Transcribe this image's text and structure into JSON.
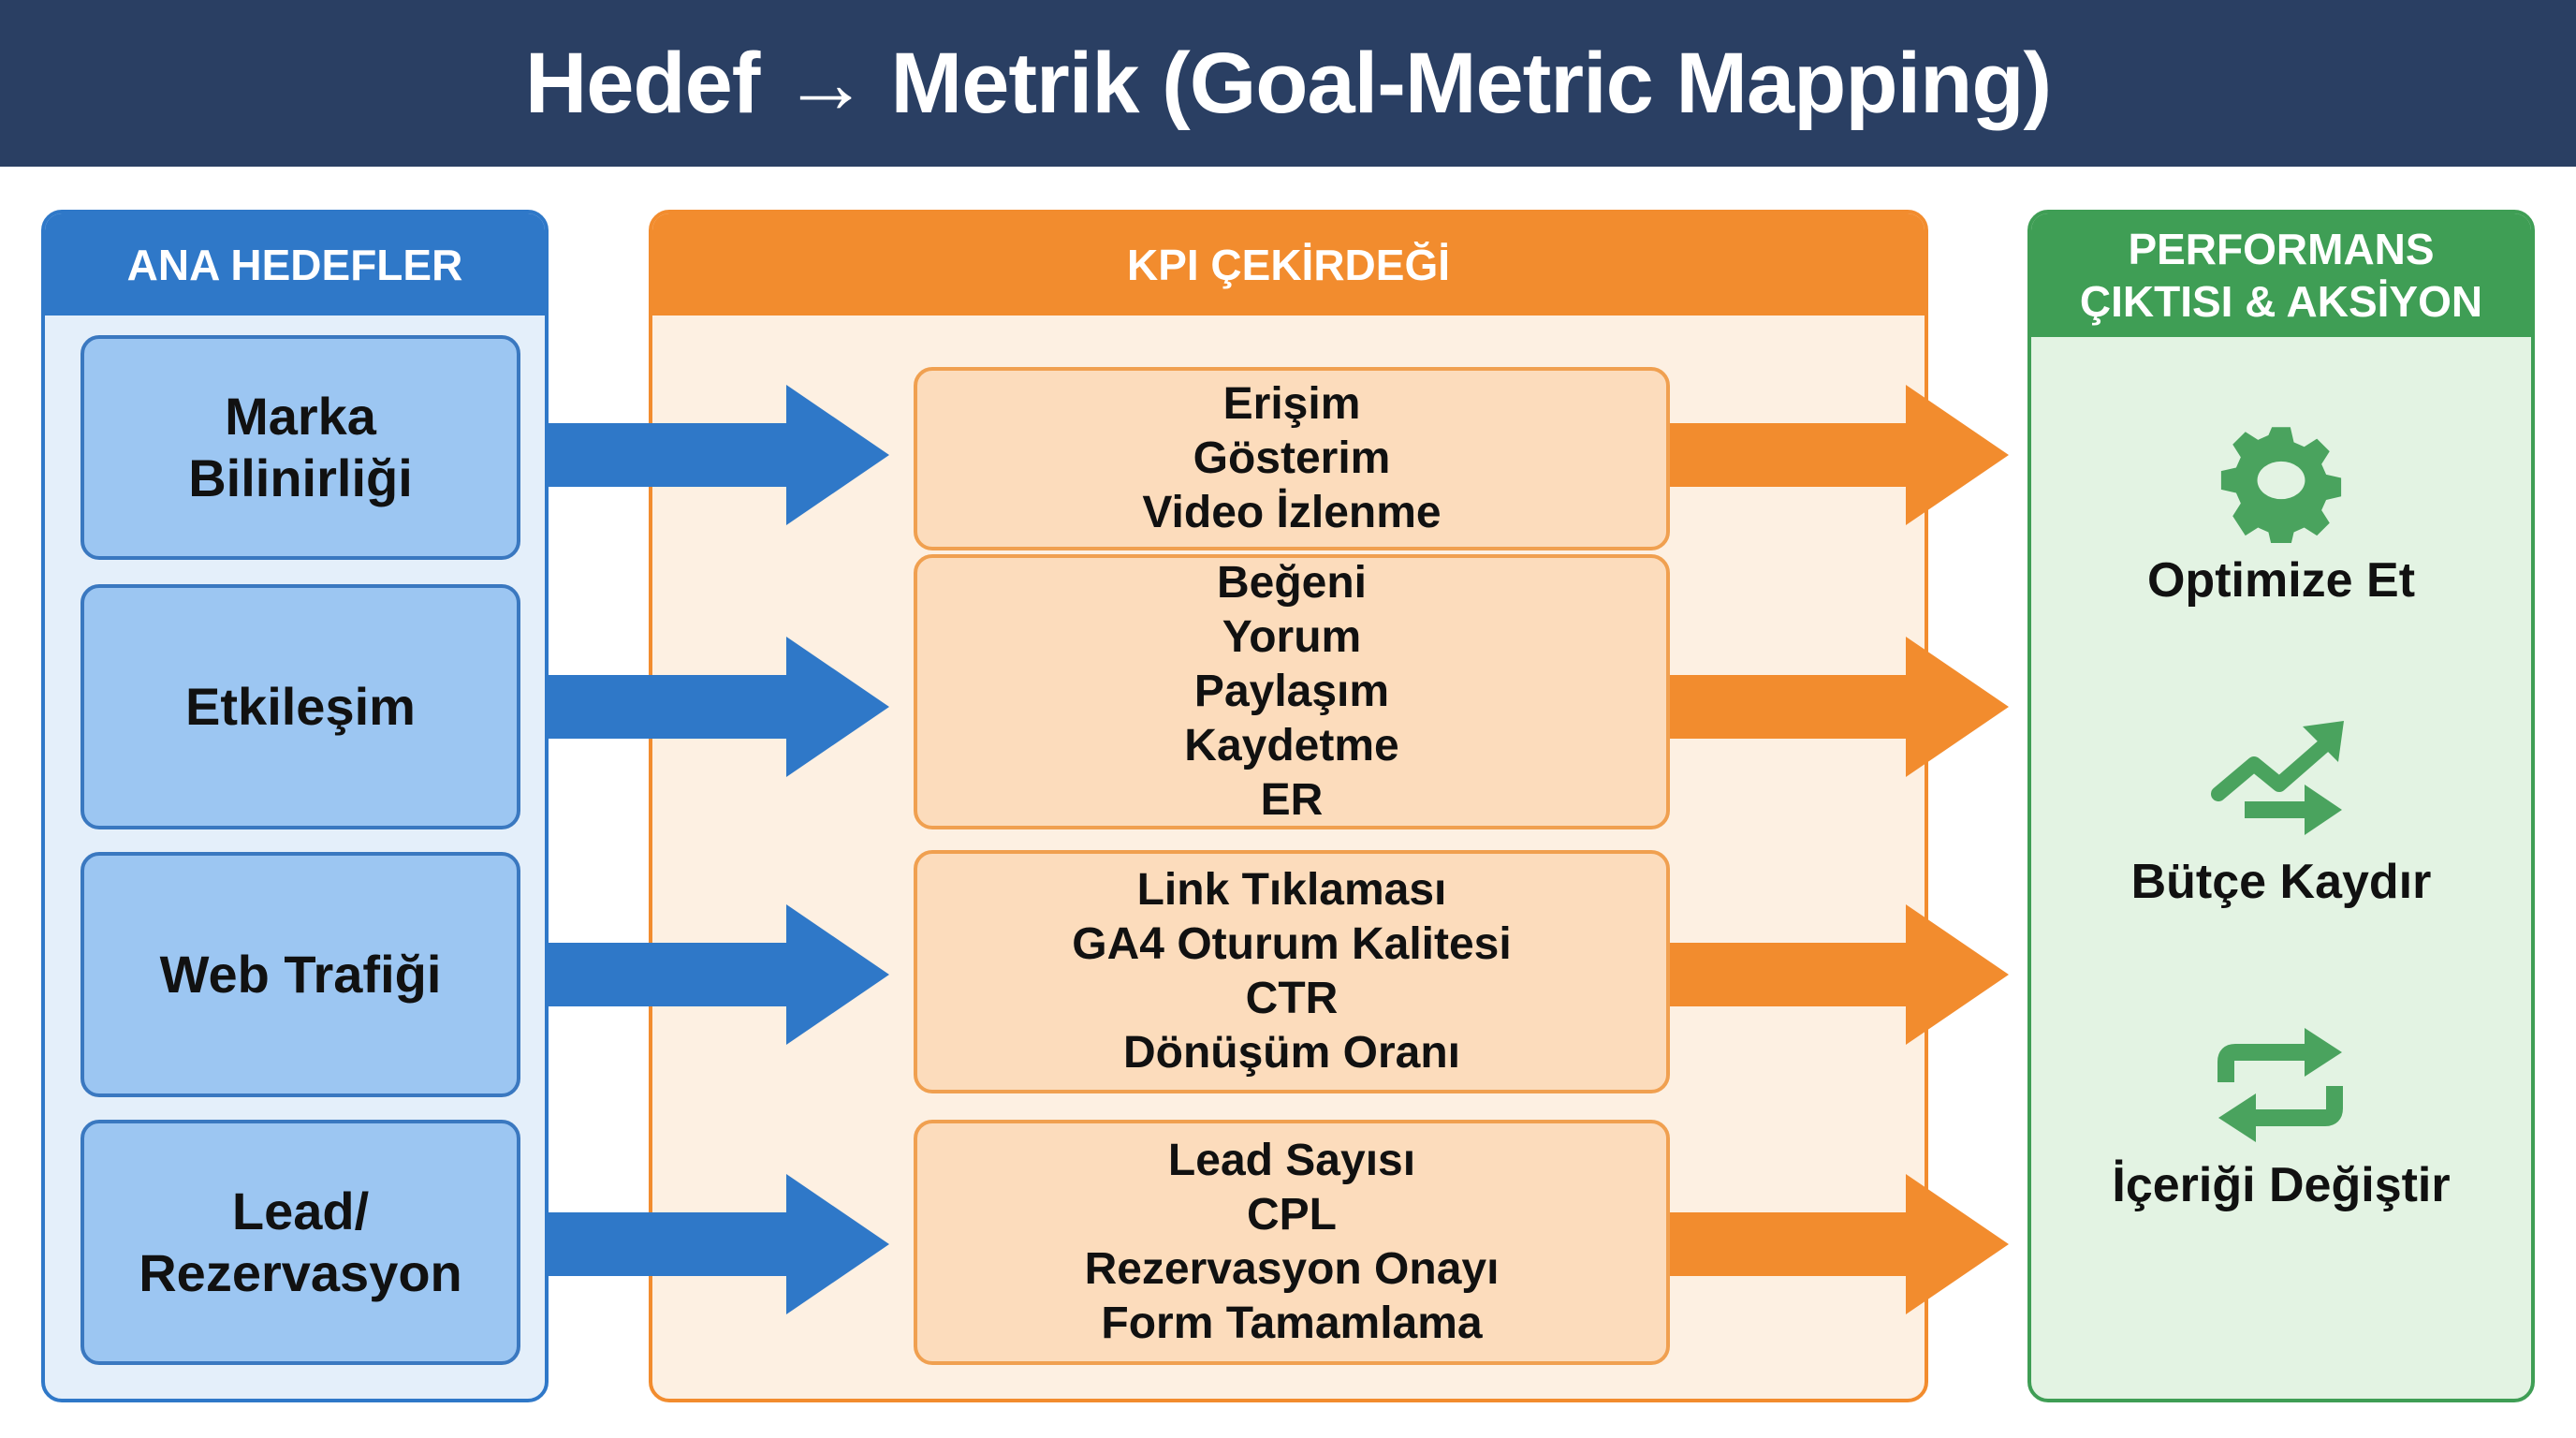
{
  "title": "Hedef → Metrik (Goal-Metric Mapping)",
  "colors": {
    "header": "#2a3f63",
    "goals": "#2f78c8",
    "kpi": "#f28c2e",
    "performance": "#3f9e55"
  },
  "goals_panel": {
    "heading": "ANA HEDEFLER",
    "items": [
      {
        "label": "Marka\nBilinirliği"
      },
      {
        "label": "Etkileşim"
      },
      {
        "label": "Web Trafiği"
      },
      {
        "label": "Lead/\nRezervasyon"
      }
    ]
  },
  "kpi_panel": {
    "heading": "KPI ÇEKİRDEĞİ",
    "groups": [
      {
        "metrics": [
          "Erişim",
          "Gösterim",
          "Video İzlenme"
        ]
      },
      {
        "metrics": [
          "Beğeni",
          "Yorum",
          "Paylaşım",
          "Kaydetme",
          "ER"
        ]
      },
      {
        "metrics": [
          "Link Tıklaması",
          "GA4 Oturum Kalitesi",
          "CTR",
          "Dönüşüm Oranı"
        ]
      },
      {
        "metrics": [
          "Lead Sayısı",
          "CPL",
          "Rezervasyon Onayı",
          "Form Tamamlama"
        ]
      }
    ]
  },
  "performance_panel": {
    "heading": "PERFORMANS\nÇIKTISI & AKSİYON",
    "actions": [
      {
        "label": "Optimize Et",
        "icon": "gear-icon"
      },
      {
        "label": "Bütçe Kaydır",
        "icon": "trend-shift-icon"
      },
      {
        "label": "İçeriği Değiştir",
        "icon": "repeat-icon"
      }
    ]
  }
}
